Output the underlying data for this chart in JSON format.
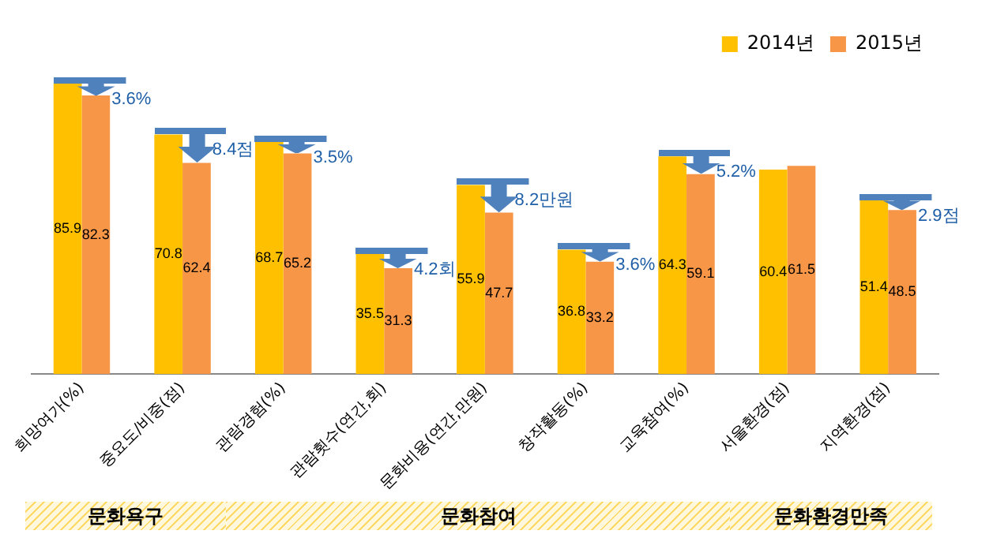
{
  "chart_data": {
    "type": "bar",
    "categories": [
      "희망여가(%)",
      "중요도/비중(점)",
      "관람경험(%)",
      "관람횟수(연간,회)",
      "문화비용(연간,만원)",
      "창작활동(%)",
      "교육참여(%)",
      "서울환경(점)",
      "지역환경(점)"
    ],
    "series": [
      {
        "name": "2014년",
        "color": "#ffc000",
        "values": [
          85.9,
          70.8,
          68.7,
          35.5,
          55.9,
          36.8,
          64.3,
          60.4,
          51.4
        ]
      },
      {
        "name": "2015년",
        "color": "#f79646",
        "values": [
          82.3,
          62.4,
          65.2,
          31.3,
          47.7,
          33.2,
          59.1,
          61.5,
          48.5
        ]
      }
    ],
    "tick_labels": "x",
    "grid": false,
    "legend": "top right",
    "data_labels": true,
    "annotations": [
      {
        "text": "3.6%",
        "x": "희망여가(%)",
        "y": 82.3
      },
      {
        "text": "8.4점",
        "x": "중요도/비중(점)",
        "y": 62.4
      },
      {
        "text": "3.5%",
        "x": "관람경험(%)",
        "y": 65.2
      },
      {
        "text": "4.2회",
        "x": "관람횟수(연간,회)",
        "y": 31.3
      },
      {
        "text": "8.2만원",
        "x": "문화비용(연간,만원)",
        "y": 47.7
      },
      {
        "text": "3.6%",
        "x": "창작활동(%)",
        "y": 33.2
      },
      {
        "text": "5.2%",
        "x": "교육참여(%)",
        "y": 59.1
      },
      {
        "text": "2.9점",
        "x": "지역환경(점)",
        "y": 48.5
      },
      "문화욕구",
      "문화참여",
      "문화환경만족"
    ]
  }
}
